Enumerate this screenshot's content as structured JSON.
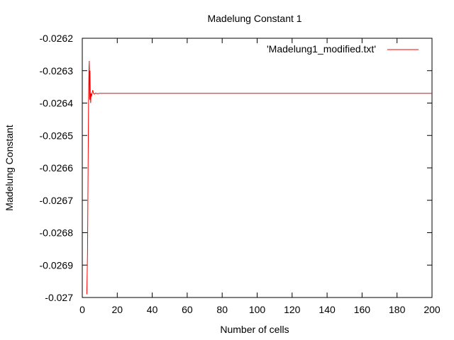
{
  "chart_data": {
    "type": "line",
    "title": "Madelung Constant 1",
    "xlabel": "Number of cells",
    "ylabel": "Madelung Constant",
    "xlim": [
      0,
      200
    ],
    "ylim": [
      -0.027,
      -0.0262
    ],
    "x_ticks": [
      "0",
      "20",
      "40",
      "60",
      "80",
      "100",
      "120",
      "140",
      "160",
      "180",
      "200"
    ],
    "y_ticks": [
      "-0.0262",
      "-0.0263",
      "-0.0264",
      "-0.0265",
      "-0.0266",
      "-0.0267",
      "-0.0268",
      "-0.0269",
      "-0.027"
    ],
    "grid": false,
    "legend_position": "top-right",
    "series": [
      {
        "name": "'Madelung1_modified.txt'",
        "color": "#ff0000",
        "x": [
          2.6,
          3.0,
          3.3,
          3.6,
          3.8,
          4.0,
          4.2,
          4.4,
          4.6,
          4.8,
          5.0,
          5.3,
          5.6,
          6.0,
          6.4,
          7.0,
          7.6,
          8.5,
          10,
          15,
          30,
          60,
          100,
          150,
          200
        ],
        "y": [
          -0.02699,
          -0.02686,
          -0.02662,
          -0.02639,
          -0.0263,
          -0.02627,
          -0.02639,
          -0.0263,
          -0.02638,
          -0.0264,
          -0.02637,
          -0.02638,
          -0.02637,
          -0.02636,
          -0.02637,
          -0.026372,
          -0.026369,
          -0.026371,
          -0.02637,
          -0.02637,
          -0.02637,
          -0.02637,
          -0.02637,
          -0.02637,
          -0.02637
        ]
      }
    ]
  }
}
